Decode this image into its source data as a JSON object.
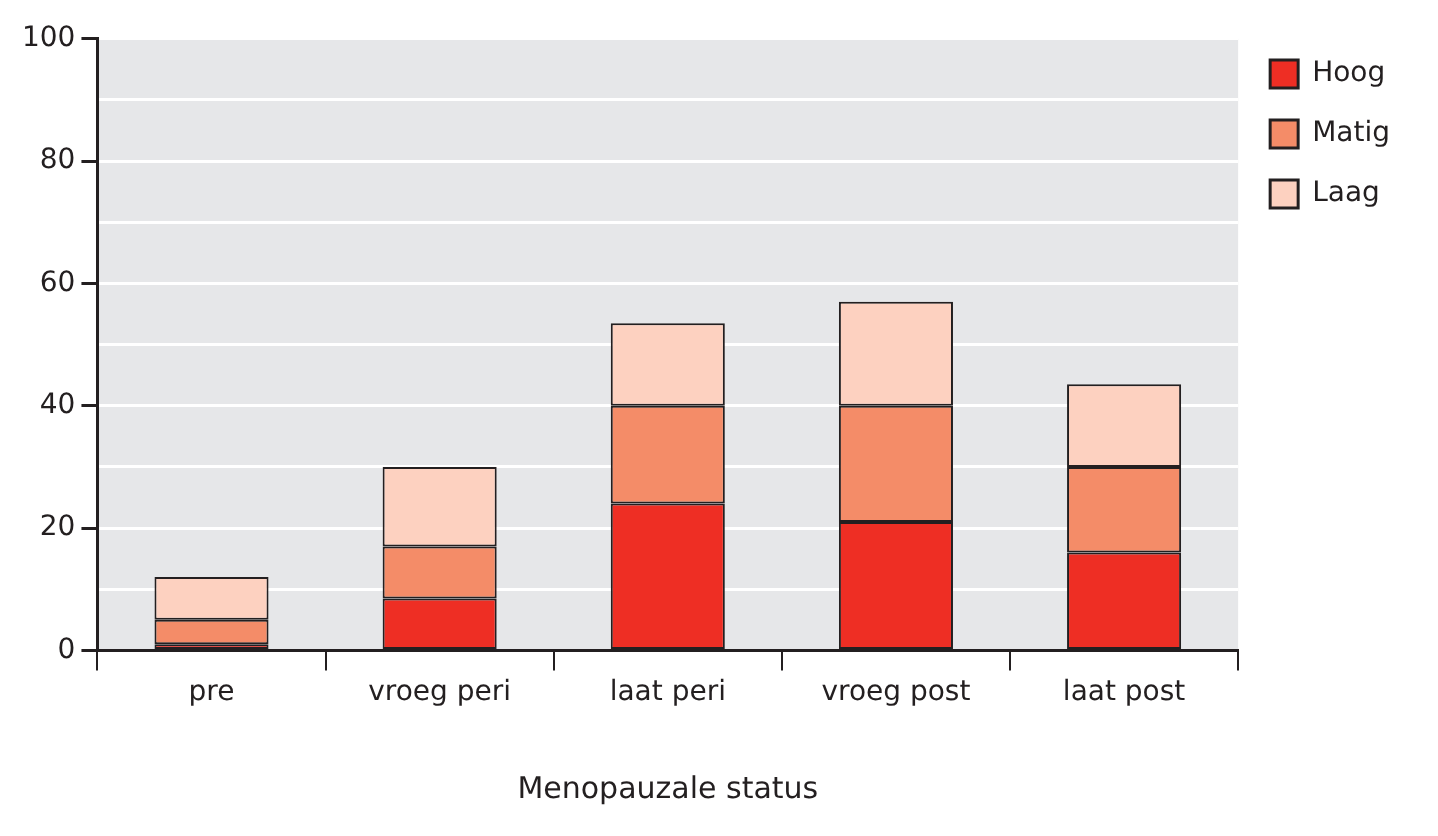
{
  "chart_data": {
    "type": "bar",
    "stacked": true,
    "xlabel": "Menopauzale status",
    "categories": [
      "pre",
      "vroeg peri",
      "laat peri",
      "vroeg post",
      "laat post"
    ],
    "series": [
      {
        "name": "Hoog",
        "color": "#ee2e24",
        "values": [
          1,
          8.5,
          24,
          21,
          16
        ]
      },
      {
        "name": "Matig",
        "color": "#f48c68",
        "values": [
          4,
          8.5,
          16,
          19,
          14
        ]
      },
      {
        "name": "Laag",
        "color": "#fdd1c0",
        "values": [
          7,
          13,
          13.5,
          17,
          13.5
        ]
      }
    ],
    "ylim": [
      0,
      100
    ],
    "yticks": [
      0,
      {
        "value": 10,
        "label": null
      },
      20,
      {
        "value": 30,
        "label": null
      },
      40,
      {
        "value": 50,
        "label": null
      },
      60,
      {
        "value": 70,
        "label": null
      },
      80,
      {
        "value": 90,
        "label": null
      },
      100
    ],
    "grid": "y",
    "legend": "top right"
  }
}
